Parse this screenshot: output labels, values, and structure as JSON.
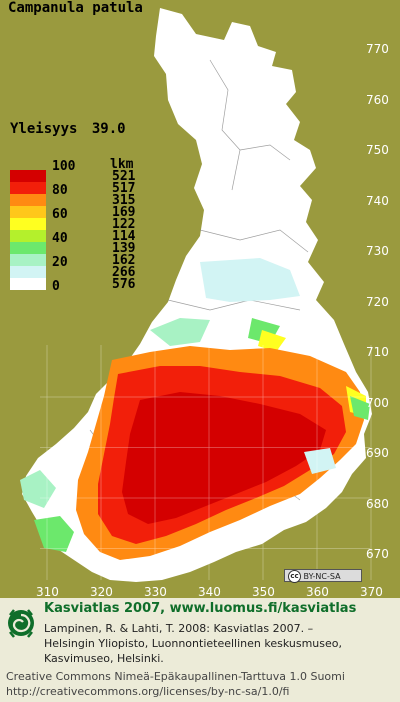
{
  "map": {
    "species": "Campanula patula",
    "frequency_label": "Yleisyys",
    "frequency_value": "39.0",
    "legend_count_header": "lkm",
    "legend": [
      {
        "level": "100",
        "count": "521",
        "color": "#D40000"
      },
      {
        "level": "80",
        "count": "517",
        "color": "#F21F0A"
      },
      {
        "level": "",
        "count": "315",
        "color": "#FF8A12"
      },
      {
        "level": "60",
        "count": "169",
        "color": "#FFC71A"
      },
      {
        "level": "",
        "count": "122",
        "color": "#FFFF20"
      },
      {
        "level": "40",
        "count": "114",
        "color": "#B4F02C"
      },
      {
        "level": "",
        "count": "139",
        "color": "#6CE86C"
      },
      {
        "level": "20",
        "count": "162",
        "color": "#A8F2C4"
      },
      {
        "level": "",
        "count": "266",
        "color": "#D2F4F4"
      },
      {
        "level": "0",
        "count": "576",
        "color": "#FFFFFF"
      }
    ],
    "y_axis_labels": [
      "770",
      "760",
      "750",
      "740",
      "730",
      "720",
      "710",
      "700",
      "690",
      "680",
      "670"
    ],
    "x_axis_labels": [
      "310",
      "320",
      "330",
      "340",
      "350",
      "360",
      "370"
    ],
    "license_badge": "BY-NC-SA",
    "background_color": "#9A9A3E",
    "land_color": "#FFFFFF"
  },
  "footer": {
    "atlas_title": "Kasviatlas 2007, www.luomus.fi/kasviatlas",
    "citation_lines": [
      "Lampinen, R. & Lahti, T. 2008: Kasviatlas 2007. –",
      "Helsingin Yliopisto, Luonnontieteellinen keskusmuseo,",
      "Kasvimuseo, Helsinki."
    ],
    "license_lines": [
      "Creative Commons Nimeä-Epäkaupallinen-Tarttuva 1.0 Suomi",
      "http://creativecommons.org/licenses/by-nc-sa/1.0/fi"
    ]
  }
}
